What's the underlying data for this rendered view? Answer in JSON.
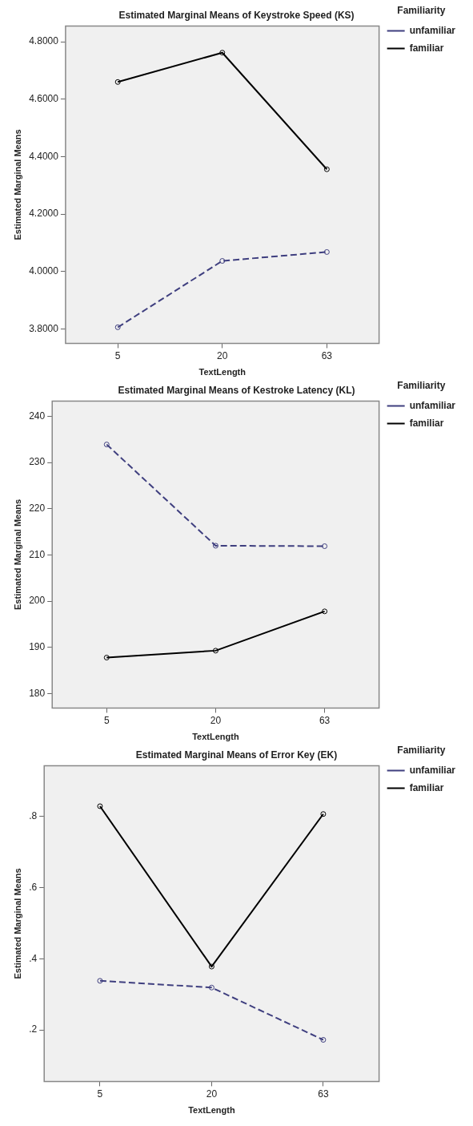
{
  "chart_data": [
    {
      "type": "line",
      "title": "Estimated Marginal Means of Keystroke Speed (KS)",
      "xlabel": "TextLength",
      "ylabel": "Estimated Marginal Means",
      "legend_title": "Familiarity",
      "legend": "right",
      "grid": false,
      "marker": "circle",
      "categories": [
        "5",
        "20",
        "63"
      ],
      "ylim": [
        3.75,
        4.855
      ],
      "yticks": [
        {
          "value": 3.8,
          "label": "3.8000"
        },
        {
          "value": 4.0,
          "label": "4.0000"
        },
        {
          "value": 4.2,
          "label": "4.2000"
        },
        {
          "value": 4.4,
          "label": "4.4000"
        },
        {
          "value": 4.6,
          "label": "4.6000"
        },
        {
          "value": 4.8,
          "label": "4.8000"
        }
      ],
      "series": [
        {
          "name": "unfamiliar",
          "color": "#3f3f7f",
          "line_style": "dashed",
          "values": [
            3.806,
            4.037,
            4.068
          ]
        },
        {
          "name": "familiar",
          "color": "#000000",
          "line_style": "solid",
          "values": [
            4.66,
            4.762,
            4.356
          ]
        }
      ]
    },
    {
      "type": "line",
      "title": "Estimated Marginal Means of Kestroke Latency (KL)",
      "xlabel": "TextLength",
      "ylabel": "Estimated Marginal Means",
      "legend_title": "Familiarity",
      "legend": "right",
      "grid": false,
      "marker": "circle",
      "categories": [
        "5",
        "20",
        "63"
      ],
      "ylim": [
        176.9,
        243.3
      ],
      "yticks": [
        180,
        190,
        200,
        210,
        220,
        230,
        240
      ],
      "series": [
        {
          "name": "unfamiliar",
          "color": "#3f3f7f",
          "line_style": "dashed",
          "values": [
            233.9,
            212.0,
            211.9
          ]
        },
        {
          "name": "familiar",
          "color": "#000000",
          "line_style": "solid",
          "values": [
            187.8,
            189.3,
            197.8
          ]
        }
      ]
    },
    {
      "type": "line",
      "title": "Estimated Marginal Means of Error Key (EK)",
      "xlabel": "TextLength",
      "ylabel": "Estimated Marginal Means",
      "legend_title": "Familiarity",
      "legend": "right",
      "grid": false,
      "marker": "circle",
      "categories": [
        "5",
        "20",
        "63"
      ],
      "ylim": [
        0.055,
        0.943
      ],
      "yticks": [
        {
          "value": 0.2,
          "label": ".2"
        },
        {
          "value": 0.4,
          "label": ".4"
        },
        {
          "value": 0.6,
          "label": ".6"
        },
        {
          "value": 0.8,
          "label": ".8"
        }
      ],
      "series": [
        {
          "name": "unfamiliar",
          "color": "#3f3f7f",
          "line_style": "dashed",
          "values": [
            0.338,
            0.319,
            0.172
          ]
        },
        {
          "name": "familiar",
          "color": "#000000",
          "line_style": "solid",
          "values": [
            0.829,
            0.378,
            0.807
          ]
        }
      ]
    }
  ]
}
